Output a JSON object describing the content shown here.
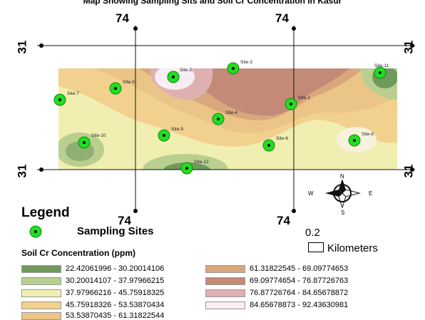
{
  "map": {
    "title": "Map Showing Sampling Sits and Soil Cr Concentration in Kasur",
    "grid_labels": {
      "top_left": "74",
      "top_right": "74",
      "bottom_left": "74",
      "bottom_right": "74",
      "left_top": "31",
      "left_bottom": "31",
      "right_top": "31",
      "right_bottom": "31"
    },
    "sites": [
      {
        "label": "Site-1"
      },
      {
        "label": "Site-2"
      },
      {
        "label": "Site-3"
      },
      {
        "label": "Site-4"
      },
      {
        "label": "Site-5"
      },
      {
        "label": "Site-6"
      },
      {
        "label": "Site-7"
      },
      {
        "label": "Site-8"
      },
      {
        "label": "Site-9"
      },
      {
        "label": "Site-10"
      },
      {
        "label": "Site-11"
      },
      {
        "label": "Site-12"
      }
    ],
    "compass": {
      "north": "N",
      "south": "S",
      "east": "E",
      "west": "W"
    }
  },
  "legend": {
    "title": "Legend",
    "sampling_label": "Sampling Sites",
    "concentration_title": "Soil Cr Concentration (ppm)",
    "classes": [
      {
        "range": "22.42061996 - 30.20014106",
        "color": "#6f9a5c"
      },
      {
        "range": "30.20014107 - 37.97966215",
        "color": "#b9cf8f"
      },
      {
        "range": "37.97966216 - 45.75918325",
        "color": "#f1eeb1"
      },
      {
        "range": "45.75918326 - 53.53870434",
        "color": "#f2d08e"
      },
      {
        "range": "53.53870435 - 61.31822544",
        "color": "#ebc487"
      },
      {
        "range": "61.31822545 - 69.09774653",
        "color": "#d8a77c"
      },
      {
        "range": "69.09774654 - 76.87726763",
        "color": "#c48a78"
      },
      {
        "range": "76.87726764 - 84.65678872",
        "color": "#dfb0b2"
      },
      {
        "range": "84.65678873 - 92.43630981",
        "color": "#f8edf2"
      }
    ]
  },
  "scale": {
    "value": "0.2",
    "unit": "Kilometers"
  }
}
